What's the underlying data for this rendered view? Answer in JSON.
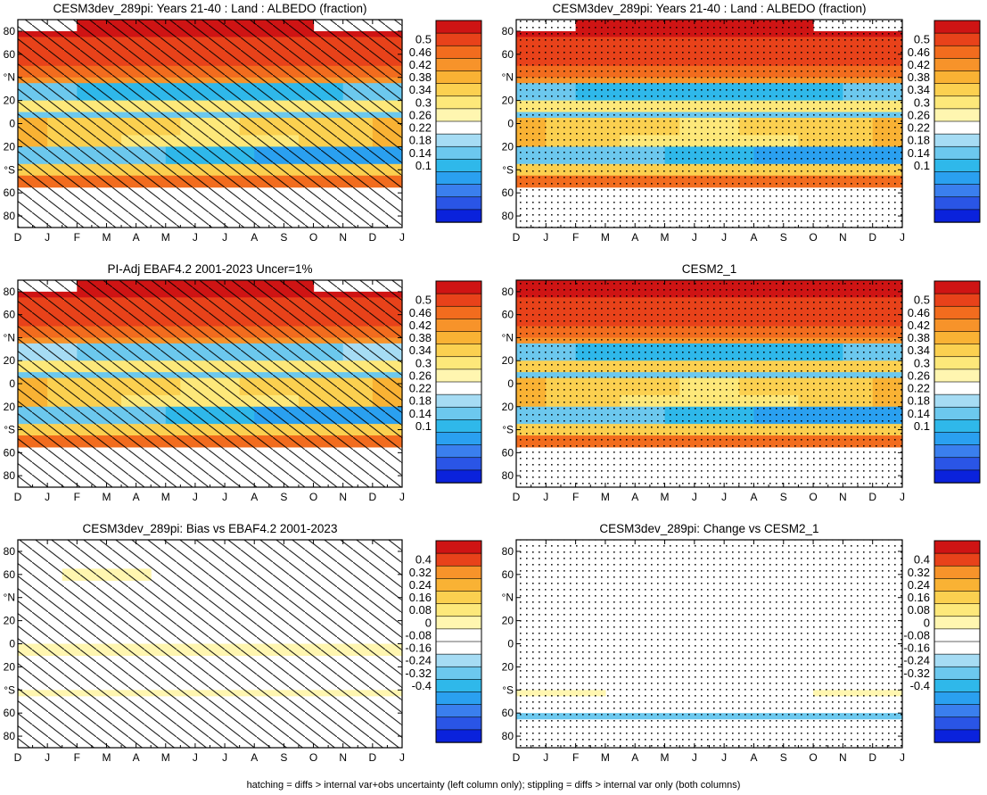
{
  "figure": {
    "footnote": "hatching = diffs > internal var+obs uncertainty (left column only); stippling = diffs > internal var only (both columns)",
    "palette_abs": [
      "#0a22dc",
      "#2a55e6",
      "#3a7fee",
      "#2aa0f0",
      "#2fb8ea",
      "#6cc8ee",
      "#a6dcf4",
      "#ffffff",
      "#fff6b0",
      "#fde87a",
      "#fbd050",
      "#f9b234",
      "#f7932a",
      "#f26c1e",
      "#e8421a",
      "#cf1414"
    ],
    "palette_diff": [
      "#0a22dc",
      "#2a55e6",
      "#3a7fee",
      "#2aa0f0",
      "#2fb8ea",
      "#6cc8ee",
      "#a6dcf4",
      "#ffffff",
      "#ffffff",
      "#fff6b0",
      "#fde87a",
      "#fbd050",
      "#f9b234",
      "#f7932a",
      "#e8421a",
      "#cf1414"
    ]
  },
  "chart_data": [
    {
      "type": "heatmap",
      "title": "CESM3dev_289pi: Years 21-40 : Land : ALBEDO (fraction)",
      "x_ticks": [
        "D",
        "J",
        "F",
        "M",
        "A",
        "M",
        "J",
        "J",
        "A",
        "S",
        "O",
        "N",
        "D",
        "J"
      ],
      "y_ticks": [
        "80",
        "60",
        "°N",
        "20",
        "0",
        "20",
        "°S",
        "60",
        "80"
      ],
      "colorbar": [
        "0.5",
        "0.46",
        "0.42",
        "0.38",
        "0.34",
        "0.3",
        "0.26",
        "0.22",
        "0.18",
        "0.14",
        "0.1"
      ],
      "overlay": "hatching",
      "kind": "abs"
    },
    {
      "type": "heatmap",
      "title": "CESM3dev_289pi: Years 21-40 : Land : ALBEDO (fraction)",
      "x_ticks": [
        "D",
        "J",
        "F",
        "M",
        "A",
        "M",
        "J",
        "J",
        "A",
        "S",
        "O",
        "N",
        "D",
        "J"
      ],
      "y_ticks": [
        "80",
        "60",
        "°N",
        "20",
        "0",
        "20",
        "°S",
        "60",
        "80"
      ],
      "colorbar": [
        "0.5",
        "0.46",
        "0.42",
        "0.38",
        "0.34",
        "0.3",
        "0.26",
        "0.22",
        "0.18",
        "0.14",
        "0.1"
      ],
      "overlay": "stippling",
      "kind": "abs"
    },
    {
      "type": "heatmap",
      "title": "PI-Adj EBAF4.2 2001-2023 Uncer=1%",
      "x_ticks": [
        "D",
        "J",
        "F",
        "M",
        "A",
        "M",
        "J",
        "J",
        "A",
        "S",
        "O",
        "N",
        "D",
        "J"
      ],
      "y_ticks": [
        "80",
        "60",
        "°N",
        "20",
        "0",
        "20",
        "°S",
        "60",
        "80"
      ],
      "colorbar": [
        "0.5",
        "0.46",
        "0.42",
        "0.38",
        "0.34",
        "0.3",
        "0.26",
        "0.22",
        "0.18",
        "0.14",
        "0.1"
      ],
      "overlay": "hatching",
      "kind": "obs"
    },
    {
      "type": "heatmap",
      "title": "CESM2_1",
      "x_ticks": [
        "D",
        "J",
        "F",
        "M",
        "A",
        "M",
        "J",
        "J",
        "A",
        "S",
        "O",
        "N",
        "D",
        "J"
      ],
      "y_ticks": [
        "80",
        "60",
        "°N",
        "20",
        "0",
        "20",
        "°S",
        "60",
        "80"
      ],
      "colorbar": [
        "0.5",
        "0.46",
        "0.42",
        "0.38",
        "0.34",
        "0.3",
        "0.26",
        "0.22",
        "0.18",
        "0.14",
        "0.1"
      ],
      "overlay": "stippling",
      "kind": "abs2"
    },
    {
      "type": "heatmap",
      "title": "CESM3dev_289pi: Bias vs EBAF4.2 2001-2023",
      "x_ticks": [
        "D",
        "J",
        "F",
        "M",
        "A",
        "M",
        "J",
        "J",
        "A",
        "S",
        "O",
        "N",
        "D",
        "J"
      ],
      "y_ticks": [
        "80",
        "60",
        "°N",
        "20",
        "0",
        "20",
        "°S",
        "60",
        "80"
      ],
      "colorbar": [
        "0.4",
        "0.32",
        "0.24",
        "0.16",
        "0.08",
        "0",
        "-0.08",
        "-0.16",
        "-0.24",
        "-0.32",
        "-0.4"
      ],
      "overlay": "hatching",
      "kind": "bias"
    },
    {
      "type": "heatmap",
      "title": "CESM3dev_289pi: Change vs CESM2_1",
      "x_ticks": [
        "D",
        "J",
        "F",
        "M",
        "A",
        "M",
        "J",
        "J",
        "A",
        "S",
        "O",
        "N",
        "D",
        "J"
      ],
      "y_ticks": [
        "80",
        "60",
        "°N",
        "20",
        "0",
        "20",
        "°S",
        "60",
        "80"
      ],
      "colorbar": [
        "0.4",
        "0.32",
        "0.24",
        "0.16",
        "0.08",
        "0",
        "-0.08",
        "-0.16",
        "-0.24",
        "-0.32",
        "-0.4"
      ],
      "overlay": "stippling",
      "kind": "change"
    }
  ]
}
